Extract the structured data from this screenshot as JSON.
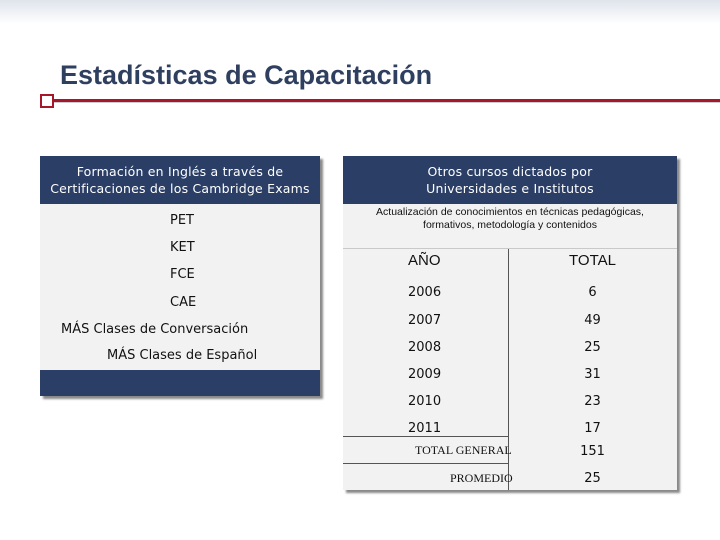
{
  "slide": {
    "title": "Estadísticas de Capacitación"
  },
  "left_panel": {
    "header_line1": "Formación en Inglés a través de",
    "header_line2": "Certificaciones de los Cambridge Exams",
    "items": [
      "PET",
      "KET",
      "FCE",
      "CAE",
      "MÁS Clases de Conversación",
      "MÁS Clases de Español"
    ]
  },
  "right_panel": {
    "header_line1": "Otros cursos dictados por",
    "header_line2": "Universidades e Institutos",
    "subheader_line1": "Actualización de conocimientos en técnicas pedagógicas,",
    "subheader_line2": "formativos, metodología y contenidos",
    "table": {
      "col_year": "AÑO",
      "col_total": "TOTAL",
      "rows": [
        {
          "year": "2006",
          "total": "6"
        },
        {
          "year": "2007",
          "total": "49"
        },
        {
          "year": "2008",
          "total": "25"
        },
        {
          "year": "2009",
          "total": "31"
        },
        {
          "year": "2010",
          "total": "23"
        },
        {
          "year": "2011",
          "total": "17"
        }
      ],
      "total_label": "TOTAL GENERAL",
      "total_value": "151",
      "avg_label": "PROMEDIO",
      "avg_value": "25"
    }
  },
  "colors": {
    "header_bg": "#2b3e66",
    "accent": "#a8162a",
    "panel_bg": "#f2f2f2"
  }
}
